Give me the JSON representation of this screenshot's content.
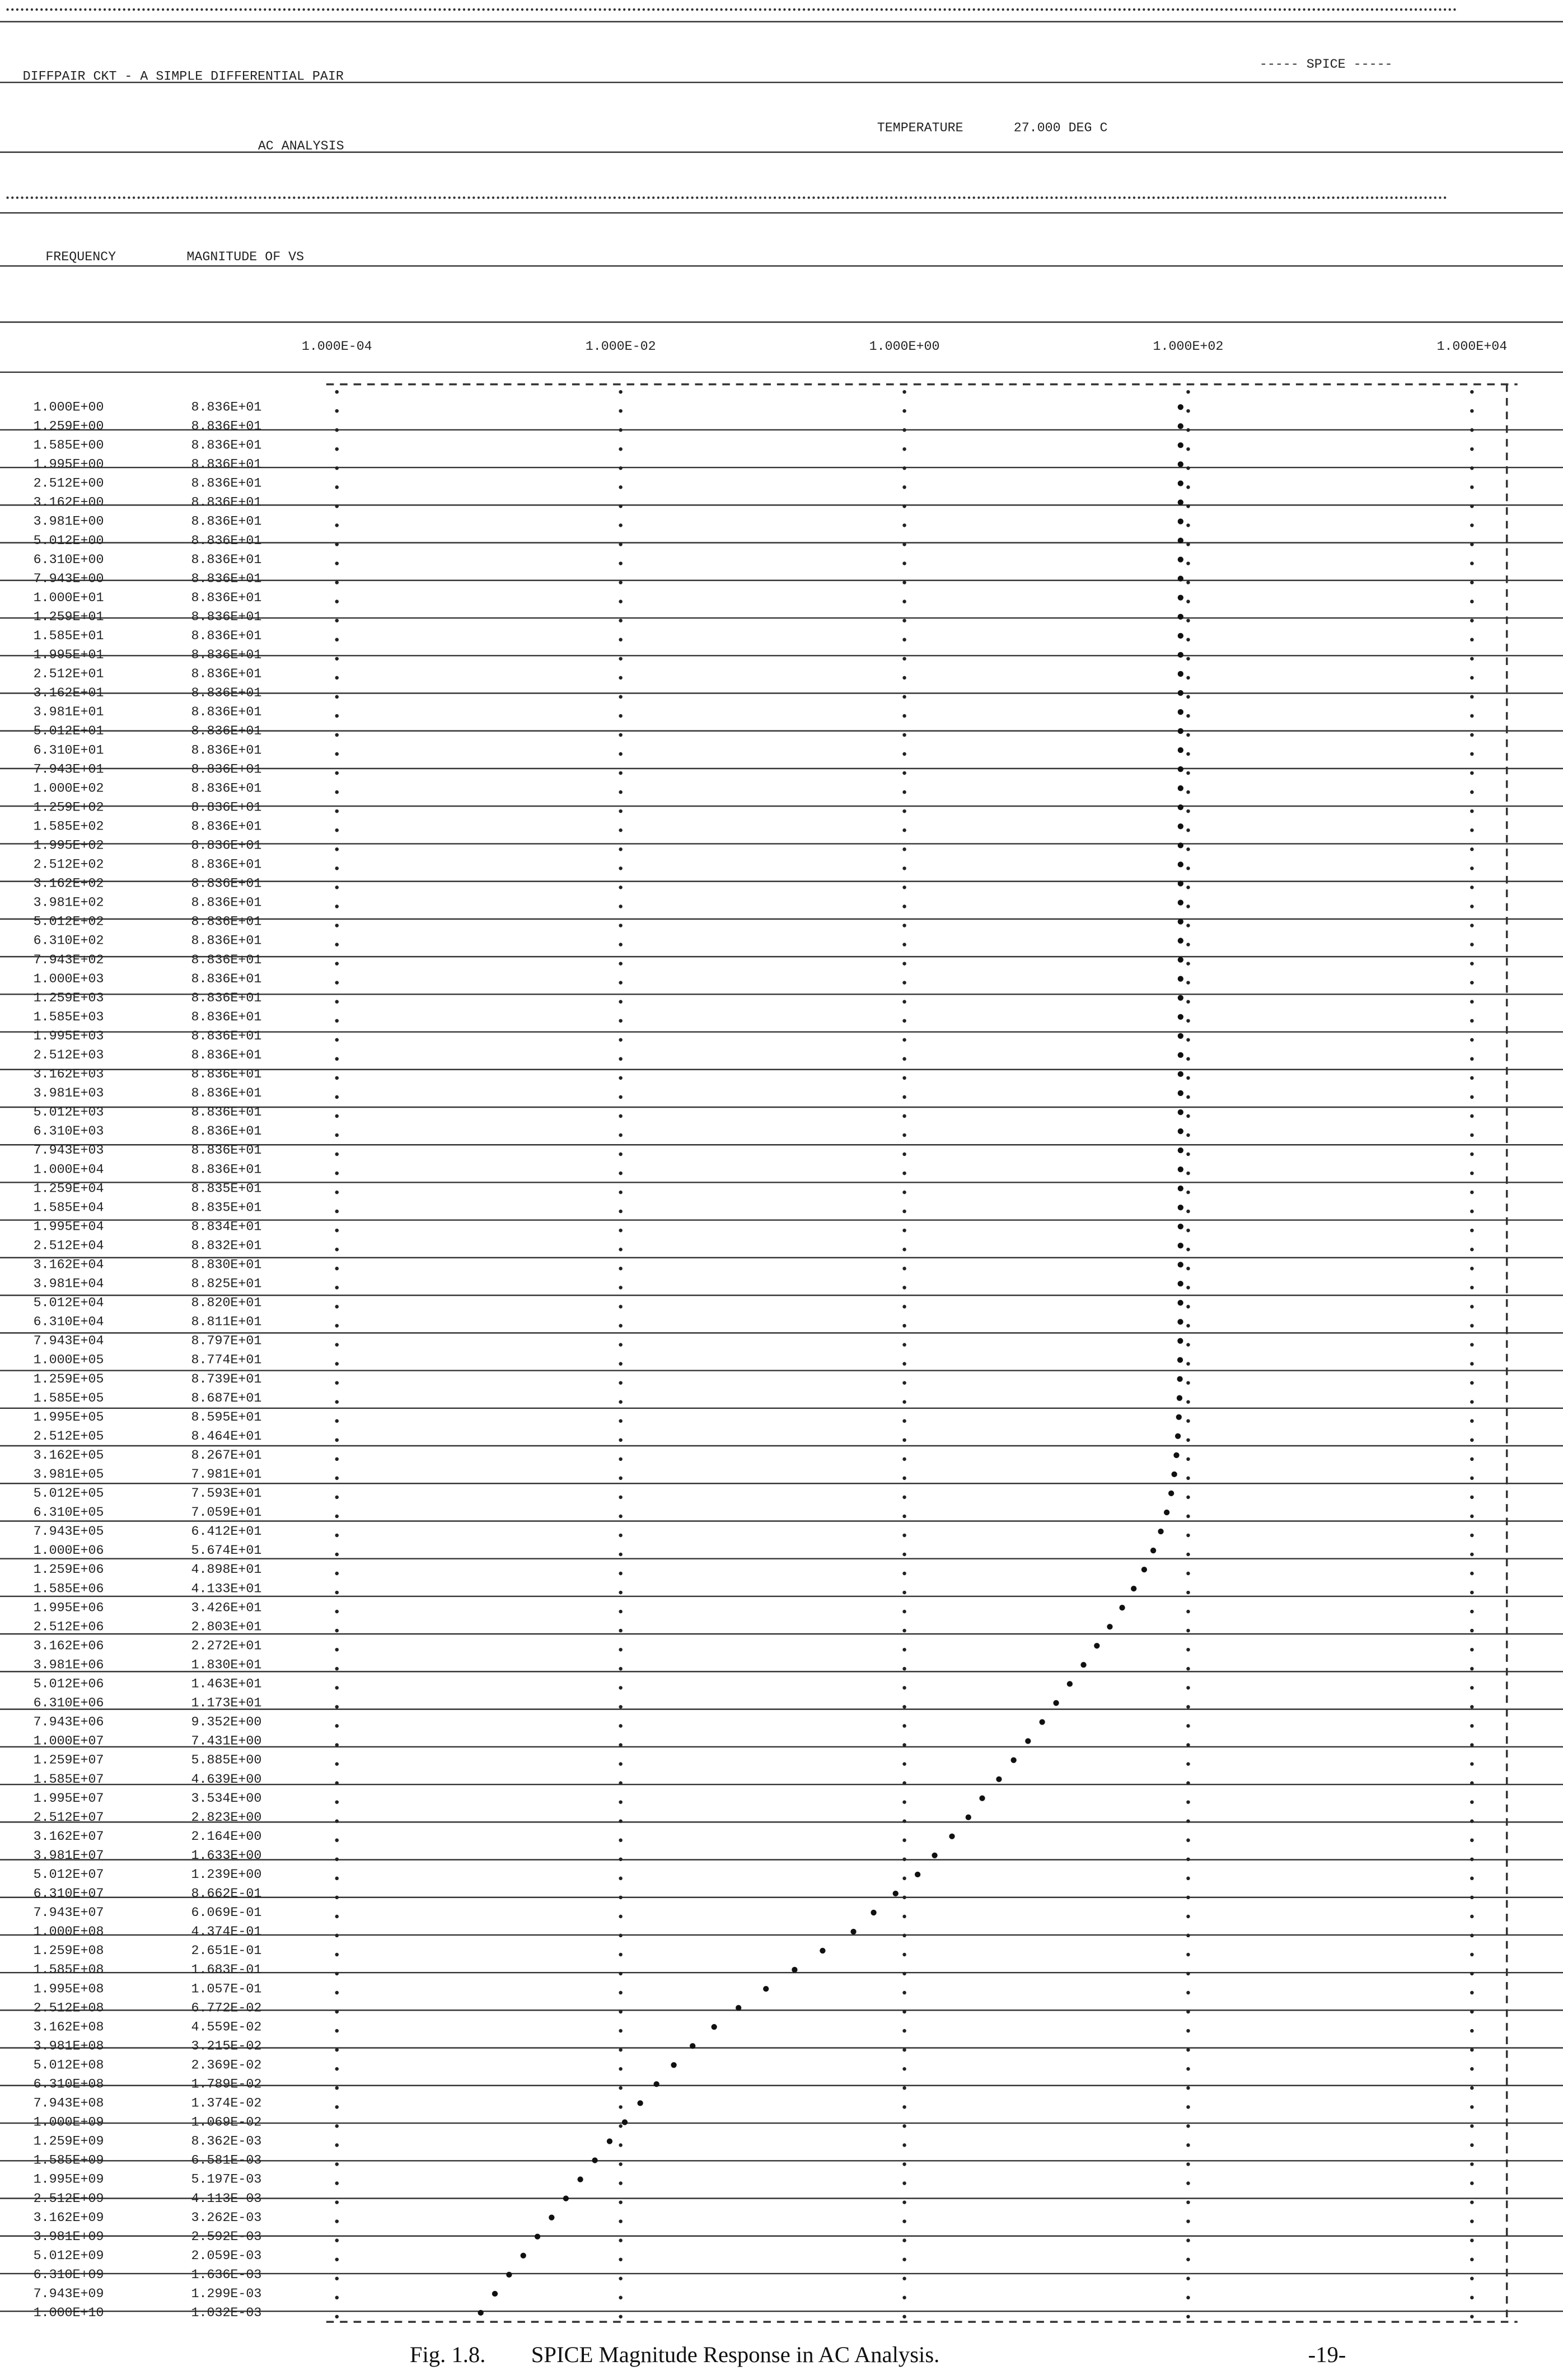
{
  "header": {
    "banner": "----- SPICE -----",
    "circuit": "DIFFPAIR CKT - A SIMPLE DIFFERENTIAL PAIR",
    "analysis": "AC ANALYSIS",
    "temperature_label": "TEMPERATURE",
    "temperature": "27.000 DEG C"
  },
  "plot": {
    "column_frequency": "FREQUENCY",
    "column_magnitude": "MAGNITUDE OF VS",
    "scale": "log",
    "ticks": [
      "1.000E-04",
      "1.000E-02",
      "1.000E+00",
      "1.000E+02",
      "1.000E+04"
    ],
    "rows": [
      [
        "1.000E+00",
        "8.836E+01"
      ],
      [
        "1.259E+00",
        "8.836E+01"
      ],
      [
        "1.585E+00",
        "8.836E+01"
      ],
      [
        "1.995E+00",
        "8.836E+01"
      ],
      [
        "2.512E+00",
        "8.836E+01"
      ],
      [
        "3.162E+00",
        "8.836E+01"
      ],
      [
        "3.981E+00",
        "8.836E+01"
      ],
      [
        "5.012E+00",
        "8.836E+01"
      ],
      [
        "6.310E+00",
        "8.836E+01"
      ],
      [
        "7.943E+00",
        "8.836E+01"
      ],
      [
        "1.000E+01",
        "8.836E+01"
      ],
      [
        "1.259E+01",
        "8.836E+01"
      ],
      [
        "1.585E+01",
        "8.836E+01"
      ],
      [
        "1.995E+01",
        "8.836E+01"
      ],
      [
        "2.512E+01",
        "8.836E+01"
      ],
      [
        "3.162E+01",
        "8.836E+01"
      ],
      [
        "3.981E+01",
        "8.836E+01"
      ],
      [
        "5.012E+01",
        "8.836E+01"
      ],
      [
        "6.310E+01",
        "8.836E+01"
      ],
      [
        "7.943E+01",
        "8.836E+01"
      ],
      [
        "1.000E+02",
        "8.836E+01"
      ],
      [
        "1.259E+02",
        "8.836E+01"
      ],
      [
        "1.585E+02",
        "8.836E+01"
      ],
      [
        "1.995E+02",
        "8.836E+01"
      ],
      [
        "2.512E+02",
        "8.836E+01"
      ],
      [
        "3.162E+02",
        "8.836E+01"
      ],
      [
        "3.981E+02",
        "8.836E+01"
      ],
      [
        "5.012E+02",
        "8.836E+01"
      ],
      [
        "6.310E+02",
        "8.836E+01"
      ],
      [
        "7.943E+02",
        "8.836E+01"
      ],
      [
        "1.000E+03",
        "8.836E+01"
      ],
      [
        "1.259E+03",
        "8.836E+01"
      ],
      [
        "1.585E+03",
        "8.836E+01"
      ],
      [
        "1.995E+03",
        "8.836E+01"
      ],
      [
        "2.512E+03",
        "8.836E+01"
      ],
      [
        "3.162E+03",
        "8.836E+01"
      ],
      [
        "3.981E+03",
        "8.836E+01"
      ],
      [
        "5.012E+03",
        "8.836E+01"
      ],
      [
        "6.310E+03",
        "8.836E+01"
      ],
      [
        "7.943E+03",
        "8.836E+01"
      ],
      [
        "1.000E+04",
        "8.836E+01"
      ],
      [
        "1.259E+04",
        "8.835E+01"
      ],
      [
        "1.585E+04",
        "8.835E+01"
      ],
      [
        "1.995E+04",
        "8.834E+01"
      ],
      [
        "2.512E+04",
        "8.832E+01"
      ],
      [
        "3.162E+04",
        "8.830E+01"
      ],
      [
        "3.981E+04",
        "8.825E+01"
      ],
      [
        "5.012E+04",
        "8.820E+01"
      ],
      [
        "6.310E+04",
        "8.811E+01"
      ],
      [
        "7.943E+04",
        "8.797E+01"
      ],
      [
        "1.000E+05",
        "8.774E+01"
      ],
      [
        "1.259E+05",
        "8.739E+01"
      ],
      [
        "1.585E+05",
        "8.687E+01"
      ],
      [
        "1.995E+05",
        "8.595E+01"
      ],
      [
        "2.512E+05",
        "8.464E+01"
      ],
      [
        "3.162E+05",
        "8.267E+01"
      ],
      [
        "3.981E+05",
        "7.981E+01"
      ],
      [
        "5.012E+05",
        "7.593E+01"
      ],
      [
        "6.310E+05",
        "7.059E+01"
      ],
      [
        "7.943E+05",
        "6.412E+01"
      ],
      [
        "1.000E+06",
        "5.674E+01"
      ],
      [
        "1.259E+06",
        "4.898E+01"
      ],
      [
        "1.585E+06",
        "4.133E+01"
      ],
      [
        "1.995E+06",
        "3.426E+01"
      ],
      [
        "2.512E+06",
        "2.803E+01"
      ],
      [
        "3.162E+06",
        "2.272E+01"
      ],
      [
        "3.981E+06",
        "1.830E+01"
      ],
      [
        "5.012E+06",
        "1.463E+01"
      ],
      [
        "6.310E+06",
        "1.173E+01"
      ],
      [
        "7.943E+06",
        "9.352E+00"
      ],
      [
        "1.000E+07",
        "7.431E+00"
      ],
      [
        "1.259E+07",
        "5.885E+00"
      ],
      [
        "1.585E+07",
        "4.639E+00"
      ],
      [
        "1.995E+07",
        "3.534E+00"
      ],
      [
        "2.512E+07",
        "2.823E+00"
      ],
      [
        "3.162E+07",
        "2.164E+00"
      ],
      [
        "3.981E+07",
        "1.633E+00"
      ],
      [
        "5.012E+07",
        "1.239E+00"
      ],
      [
        "6.310E+07",
        "8.662E-01"
      ],
      [
        "7.943E+07",
        "6.069E-01"
      ],
      [
        "1.000E+08",
        "4.374E-01"
      ],
      [
        "1.259E+08",
        "2.651E-01"
      ],
      [
        "1.585E+08",
        "1.683E-01"
      ],
      [
        "1.995E+08",
        "1.057E-01"
      ],
      [
        "2.512E+08",
        "6.772E-02"
      ],
      [
        "3.162E+08",
        "4.559E-02"
      ],
      [
        "3.981E+08",
        "3.215E-02"
      ],
      [
        "5.012E+08",
        "2.369E-02"
      ],
      [
        "6.310E+08",
        "1.789E-02"
      ],
      [
        "7.943E+08",
        "1.374E-02"
      ],
      [
        "1.000E+09",
        "1.069E-02"
      ],
      [
        "1.259E+09",
        "8.362E-03"
      ],
      [
        "1.585E+09",
        "6.581E-03"
      ],
      [
        "1.995E+09",
        "5.197E-03"
      ],
      [
        "2.512E+09",
        "4.113E-03"
      ],
      [
        "3.162E+09",
        "3.262E-03"
      ],
      [
        "3.981E+09",
        "2.592E-03"
      ],
      [
        "5.012E+09",
        "2.059E-03"
      ],
      [
        "6.310E+09",
        "1.636E-03"
      ],
      [
        "7.943E+09",
        "1.299E-03"
      ],
      [
        "1.000E+10",
        "1.032E-03"
      ]
    ]
  },
  "caption": {
    "label": "Fig. 1.8.",
    "text": "SPICE Magnitude Response in AC Analysis.",
    "page": "-19-"
  }
}
